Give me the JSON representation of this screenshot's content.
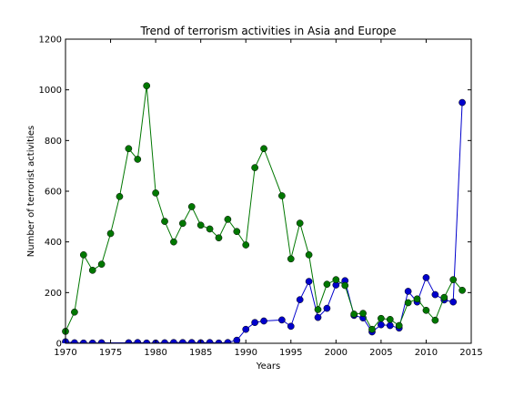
{
  "chart_data": {
    "type": "line",
    "title": "Trend of terrorism activities in Asia and Europe",
    "xlabel": "Years",
    "ylabel": "Number of terrorist activities",
    "xlim": [
      1970,
      2015
    ],
    "ylim": [
      0,
      1200
    ],
    "xticks": [
      1970,
      1975,
      1980,
      1985,
      1990,
      1995,
      2000,
      2005,
      2010,
      2015
    ],
    "yticks": [
      0,
      200,
      400,
      600,
      800,
      1000,
      1200
    ],
    "grid": false,
    "legend": false,
    "series": [
      {
        "color": "#0000cc",
        "points": [
          [
            1970,
            6
          ],
          [
            1971,
            2
          ],
          [
            1972,
            1
          ],
          [
            1973,
            1
          ],
          [
            1974,
            2
          ],
          [
            1977,
            2
          ],
          [
            1978,
            3
          ],
          [
            1979,
            1
          ],
          [
            1980,
            1
          ],
          [
            1981,
            2
          ],
          [
            1982,
            3
          ],
          [
            1983,
            3
          ],
          [
            1984,
            3
          ],
          [
            1985,
            2
          ],
          [
            1986,
            3
          ],
          [
            1987,
            1
          ],
          [
            1988,
            3
          ],
          [
            1989,
            12
          ],
          [
            1990,
            55
          ],
          [
            1991,
            82
          ],
          [
            1992,
            88
          ],
          [
            1994,
            92
          ],
          [
            1995,
            67
          ],
          [
            1996,
            172
          ],
          [
            1997,
            244
          ],
          [
            1998,
            102
          ],
          [
            1999,
            138
          ],
          [
            2000,
            230
          ],
          [
            2001,
            247
          ],
          [
            2002,
            110
          ],
          [
            2003,
            100
          ],
          [
            2004,
            45
          ],
          [
            2005,
            73
          ],
          [
            2006,
            70
          ],
          [
            2007,
            60
          ],
          [
            2008,
            205
          ],
          [
            2009,
            163
          ],
          [
            2010,
            259
          ],
          [
            2011,
            192
          ],
          [
            2012,
            171
          ],
          [
            2013,
            163
          ],
          [
            2014,
            950
          ]
        ]
      },
      {
        "color": "#007700",
        "points": [
          [
            1970,
            47
          ],
          [
            1971,
            123
          ],
          [
            1972,
            349
          ],
          [
            1973,
            288
          ],
          [
            1974,
            312
          ],
          [
            1975,
            433
          ],
          [
            1976,
            579
          ],
          [
            1977,
            768
          ],
          [
            1978,
            726
          ],
          [
            1979,
            1016
          ],
          [
            1980,
            593
          ],
          [
            1981,
            481
          ],
          [
            1982,
            400
          ],
          [
            1983,
            473
          ],
          [
            1984,
            539
          ],
          [
            1985,
            466
          ],
          [
            1986,
            451
          ],
          [
            1987,
            416
          ],
          [
            1988,
            489
          ],
          [
            1989,
            441
          ],
          [
            1990,
            388
          ],
          [
            1991,
            693
          ],
          [
            1992,
            768
          ],
          [
            1994,
            582
          ],
          [
            1995,
            333
          ],
          [
            1996,
            474
          ],
          [
            1997,
            349
          ],
          [
            1998,
            133
          ],
          [
            1999,
            233
          ],
          [
            2000,
            251
          ],
          [
            2001,
            228
          ],
          [
            2002,
            115
          ],
          [
            2003,
            118
          ],
          [
            2004,
            55
          ],
          [
            2005,
            98
          ],
          [
            2006,
            94
          ],
          [
            2007,
            70
          ],
          [
            2008,
            160
          ],
          [
            2009,
            175
          ],
          [
            2010,
            130
          ],
          [
            2011,
            91
          ],
          [
            2012,
            181
          ],
          [
            2013,
            251
          ],
          [
            2014,
            209
          ]
        ]
      }
    ]
  }
}
